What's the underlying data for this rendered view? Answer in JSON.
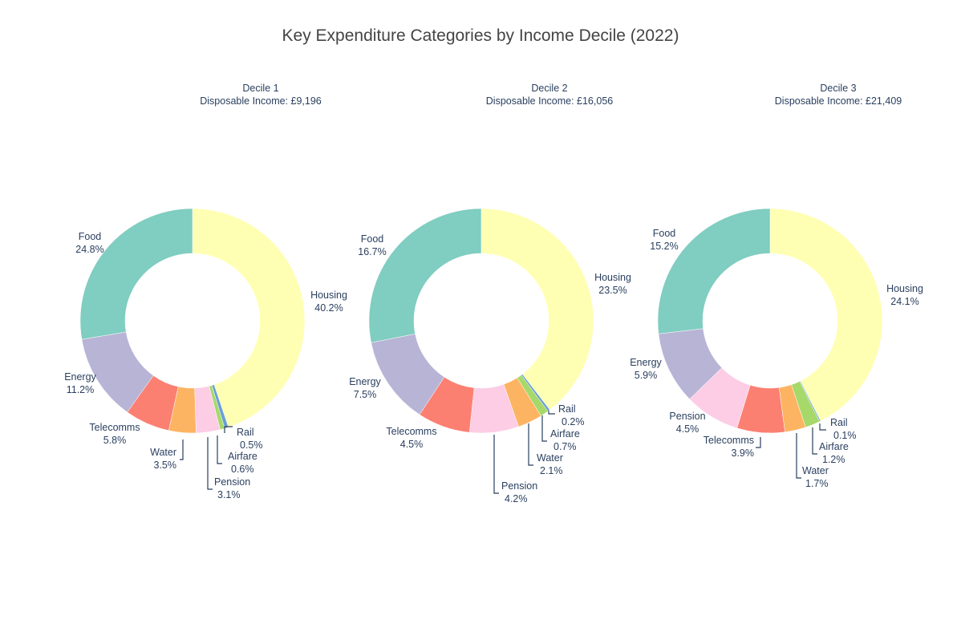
{
  "chart_data": {
    "type": "pie",
    "hole": true,
    "title": "Key Expenditure Categories by Income Decile (2022)",
    "colors": {
      "Housing": "#ffffb3",
      "Food": "#80cdc1",
      "Energy": "#b8b4d6",
      "Telecomms": "#fb8072",
      "Water": "#fdb462",
      "Pension": "#fccde5",
      "Airfare": "#a6d96a",
      "Rail": "#6a9fd4"
    },
    "charts": [
      {
        "subtitle_line1": "Decile 1",
        "subtitle_line2": "Disposable Income: £9,196",
        "slices": [
          {
            "label": "Housing",
            "value": 40.2
          },
          {
            "label": "Rail",
            "value": 0.5
          },
          {
            "label": "Airfare",
            "value": 0.6
          },
          {
            "label": "Pension",
            "value": 3.1
          },
          {
            "label": "Water",
            "value": 3.5
          },
          {
            "label": "Telecomms",
            "value": 5.8
          },
          {
            "label": "Energy",
            "value": 11.2
          },
          {
            "label": "Food",
            "value": 24.8
          }
        ]
      },
      {
        "subtitle_line1": "Decile 2",
        "subtitle_line2": "Disposable Income: £16,056",
        "slices": [
          {
            "label": "Housing",
            "value": 23.5
          },
          {
            "label": "Rail",
            "value": 0.2
          },
          {
            "label": "Airfare",
            "value": 0.7
          },
          {
            "label": "Water",
            "value": 2.1
          },
          {
            "label": "Pension",
            "value": 4.2
          },
          {
            "label": "Telecomms",
            "value": 4.5
          },
          {
            "label": "Energy",
            "value": 7.5
          },
          {
            "label": "Food",
            "value": 16.7
          }
        ]
      },
      {
        "subtitle_line1": "Decile 3",
        "subtitle_line2": "Disposable Income: £21,409",
        "slices": [
          {
            "label": "Housing",
            "value": 24.1
          },
          {
            "label": "Rail",
            "value": 0.1
          },
          {
            "label": "Airfare",
            "value": 1.2
          },
          {
            "label": "Water",
            "value": 1.7
          },
          {
            "label": "Telecomms",
            "value": 3.9
          },
          {
            "label": "Pension",
            "value": 4.5
          },
          {
            "label": "Energy",
            "value": 5.9
          },
          {
            "label": "Food",
            "value": 15.2
          }
        ]
      }
    ]
  }
}
